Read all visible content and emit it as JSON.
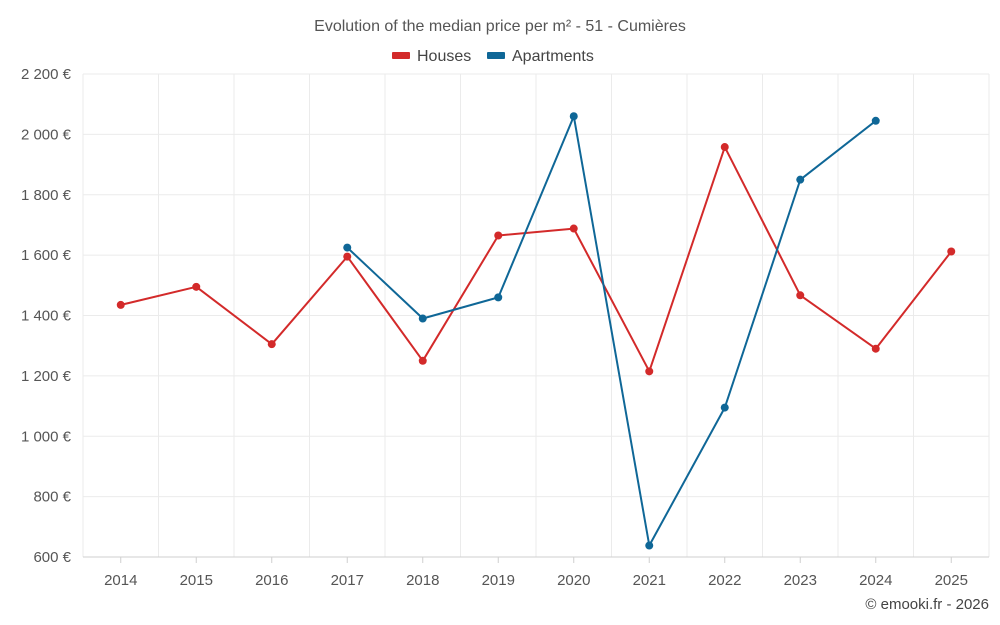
{
  "chart_data": {
    "type": "line",
    "title": "Evolution of the median price per m² - 51 - Cumières",
    "categories": [
      "2014",
      "2015",
      "2016",
      "2017",
      "2018",
      "2019",
      "2020",
      "2021",
      "2022",
      "2023",
      "2024",
      "2025"
    ],
    "ylim": [
      600,
      2200
    ],
    "yticks": [
      600,
      800,
      1000,
      1200,
      1400,
      1600,
      1800,
      2000,
      2200
    ],
    "ytick_labels": [
      "600 €",
      "800 €",
      "1 000 €",
      "1 200 €",
      "1 400 €",
      "1 600 €",
      "1 800 €",
      "2 000 €",
      "2 200 €"
    ],
    "grid": true,
    "legend_position": "top-center",
    "series": [
      {
        "name": "Houses",
        "color": "#d32a2a",
        "values": [
          1435,
          1495,
          1305,
          1595,
          1250,
          1665,
          1688,
          1215,
          1958,
          1467,
          1290,
          1612
        ]
      },
      {
        "name": "Apartments",
        "color": "#0f6797",
        "values": [
          null,
          null,
          null,
          1625,
          1390,
          1460,
          2060,
          638,
          1095,
          1850,
          2045,
          null
        ]
      }
    ],
    "credit": "© emooki.fr - 2026"
  }
}
